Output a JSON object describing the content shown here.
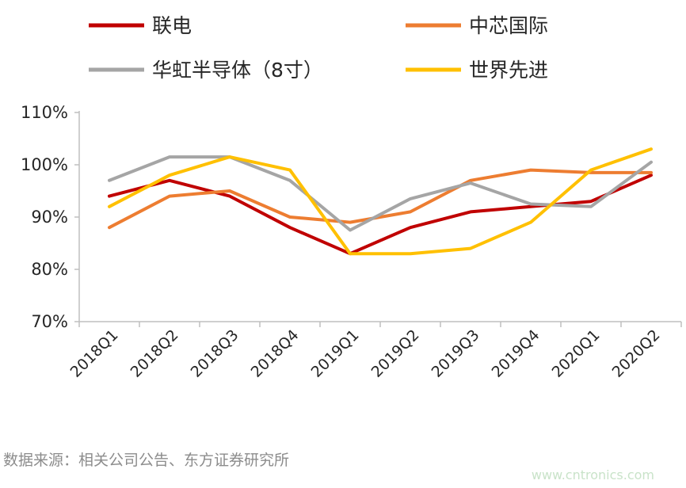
{
  "chart_data": {
    "type": "line",
    "categories": [
      "2018Q1",
      "2018Q2",
      "2018Q3",
      "2018Q4",
      "2019Q1",
      "2019Q2",
      "2019Q3",
      "2019Q4",
      "2020Q1",
      "2020Q2"
    ],
    "ylim": [
      70,
      110
    ],
    "yticks": [
      "70%",
      "80%",
      "90%",
      "100%",
      "110%"
    ],
    "ytick_values": [
      70,
      80,
      90,
      100,
      110
    ],
    "legend_position": "top",
    "grid": false,
    "series": [
      {
        "name": "联电",
        "color": "#c00000",
        "values": [
          94,
          97,
          94,
          88,
          83,
          88,
          91,
          92,
          93,
          98
        ]
      },
      {
        "name": "中芯国际",
        "color": "#ed7d31",
        "values": [
          88,
          94,
          95,
          90,
          89,
          91,
          97,
          99,
          98.5,
          98.5
        ]
      },
      {
        "name": "华虹半导体（8寸）",
        "color": "#a5a5a5",
        "values": [
          97,
          101.5,
          101.5,
          97,
          87.5,
          93.5,
          96.5,
          92.5,
          92,
          100.5
        ]
      },
      {
        "name": "世界先进",
        "color": "#ffc000",
        "values": [
          92,
          98,
          101.5,
          99,
          83,
          83,
          84,
          89,
          99,
          103
        ]
      }
    ]
  },
  "source": "数据来源：相关公司公告、东方证券研究所",
  "watermark": "www.cntronics.com"
}
